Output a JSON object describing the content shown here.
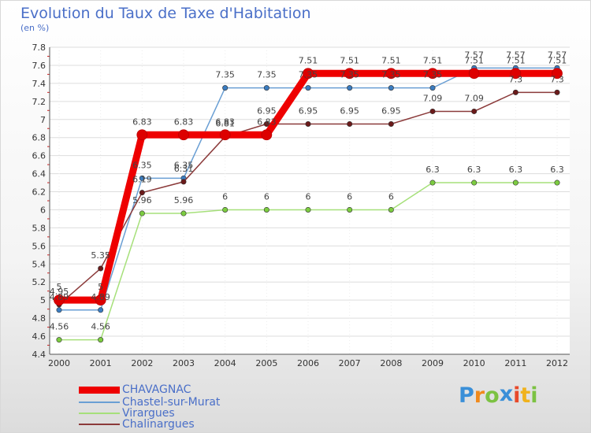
{
  "chart_data": {
    "type": "line",
    "title": "Evolution du Taux de Taxe d'Habitation",
    "subtitle": "(en %)",
    "xlabel": "",
    "ylabel": "",
    "ylim": [
      4.4,
      7.8
    ],
    "yticks": [
      "4.4",
      "4.6",
      "4.8",
      "5",
      "5.2",
      "5.4",
      "5.6",
      "5.8",
      "6",
      "6.2",
      "6.4",
      "6.6",
      "6.8",
      "7",
      "7.2",
      "7.4",
      "7.6",
      "7.8"
    ],
    "categories": [
      "2000",
      "2001",
      "2002",
      "2003",
      "2004",
      "2005",
      "2006",
      "2007",
      "2008",
      "2009",
      "2010",
      "2011",
      "2012"
    ],
    "series": [
      {
        "name": "Chastel-sur-Murat",
        "color": "#6a9fd4",
        "marker": "#3a7cc0",
        "values": [
          4.89,
          4.89,
          6.35,
          6.35,
          7.35,
          7.35,
          7.35,
          7.35,
          7.35,
          7.35,
          7.57,
          7.57,
          7.57
        ],
        "labels": [
          "4.89",
          "4.89",
          "6.35",
          "6.35",
          "7.35",
          "7.35",
          "7.35",
          "7.35",
          "7.35",
          "7.35",
          "7.57",
          "7.57",
          "7.57"
        ]
      },
      {
        "name": "Virargues",
        "color": "#a6e07a",
        "marker": "#7ccc40",
        "values": [
          4.56,
          4.56,
          5.96,
          5.96,
          6,
          6,
          6,
          6,
          6,
          6.3,
          6.3,
          6.3,
          6.3
        ],
        "labels": [
          "4.56",
          "4.56",
          "5.96",
          "5.96",
          "6",
          "6",
          "6",
          "6",
          "6",
          "6.3",
          "6.3",
          "6.3",
          "6.3"
        ]
      },
      {
        "name": "Chalinargues",
        "color": "#8b3a3a",
        "marker": "#6b1a1a",
        "values": [
          4.95,
          5.35,
          6.19,
          6.31,
          6.81,
          6.95,
          6.95,
          6.95,
          6.95,
          7.09,
          7.09,
          7.3,
          7.3
        ],
        "labels": [
          "4.95",
          "5.35",
          "6.19",
          "6.31",
          "6.81",
          "6.95",
          "6.95",
          "6.95",
          "6.95",
          "7.09",
          "7.09",
          "7.3",
          "7.3"
        ]
      },
      {
        "name": "CHAVAGNAC",
        "color": "#ee0000",
        "marker": "#dd0000",
        "values": [
          5,
          5,
          6.83,
          6.83,
          6.83,
          6.83,
          7.51,
          7.51,
          7.51,
          7.51,
          7.51,
          7.51,
          7.51
        ],
        "labels": [
          "5",
          "5",
          "6.83",
          "6.83",
          "6.83",
          "6.83",
          "7.51",
          "7.51",
          "7.51",
          "7.51",
          "7.51",
          "7.51",
          "7.51"
        ]
      }
    ],
    "legend": [
      "CHAVAGNAC",
      "Chastel-sur-Murat",
      "Virargues",
      "Chalinargues"
    ]
  },
  "legend_colors": {
    "CHAVAGNAC": "#ee0000",
    "Chastel-sur-Murat": "#6a9fd4",
    "Virargues": "#a6e07a",
    "Chalinargues": "#8b3a3a"
  },
  "brand": {
    "letters": [
      "P",
      "r",
      "o",
      "x",
      "i",
      "t",
      "i"
    ],
    "colors": [
      "#3a8fd8",
      "#f08a1c",
      "#7cc242",
      "#3a8fd8",
      "#e84a2a",
      "#f0b21c",
      "#7cc242"
    ]
  }
}
